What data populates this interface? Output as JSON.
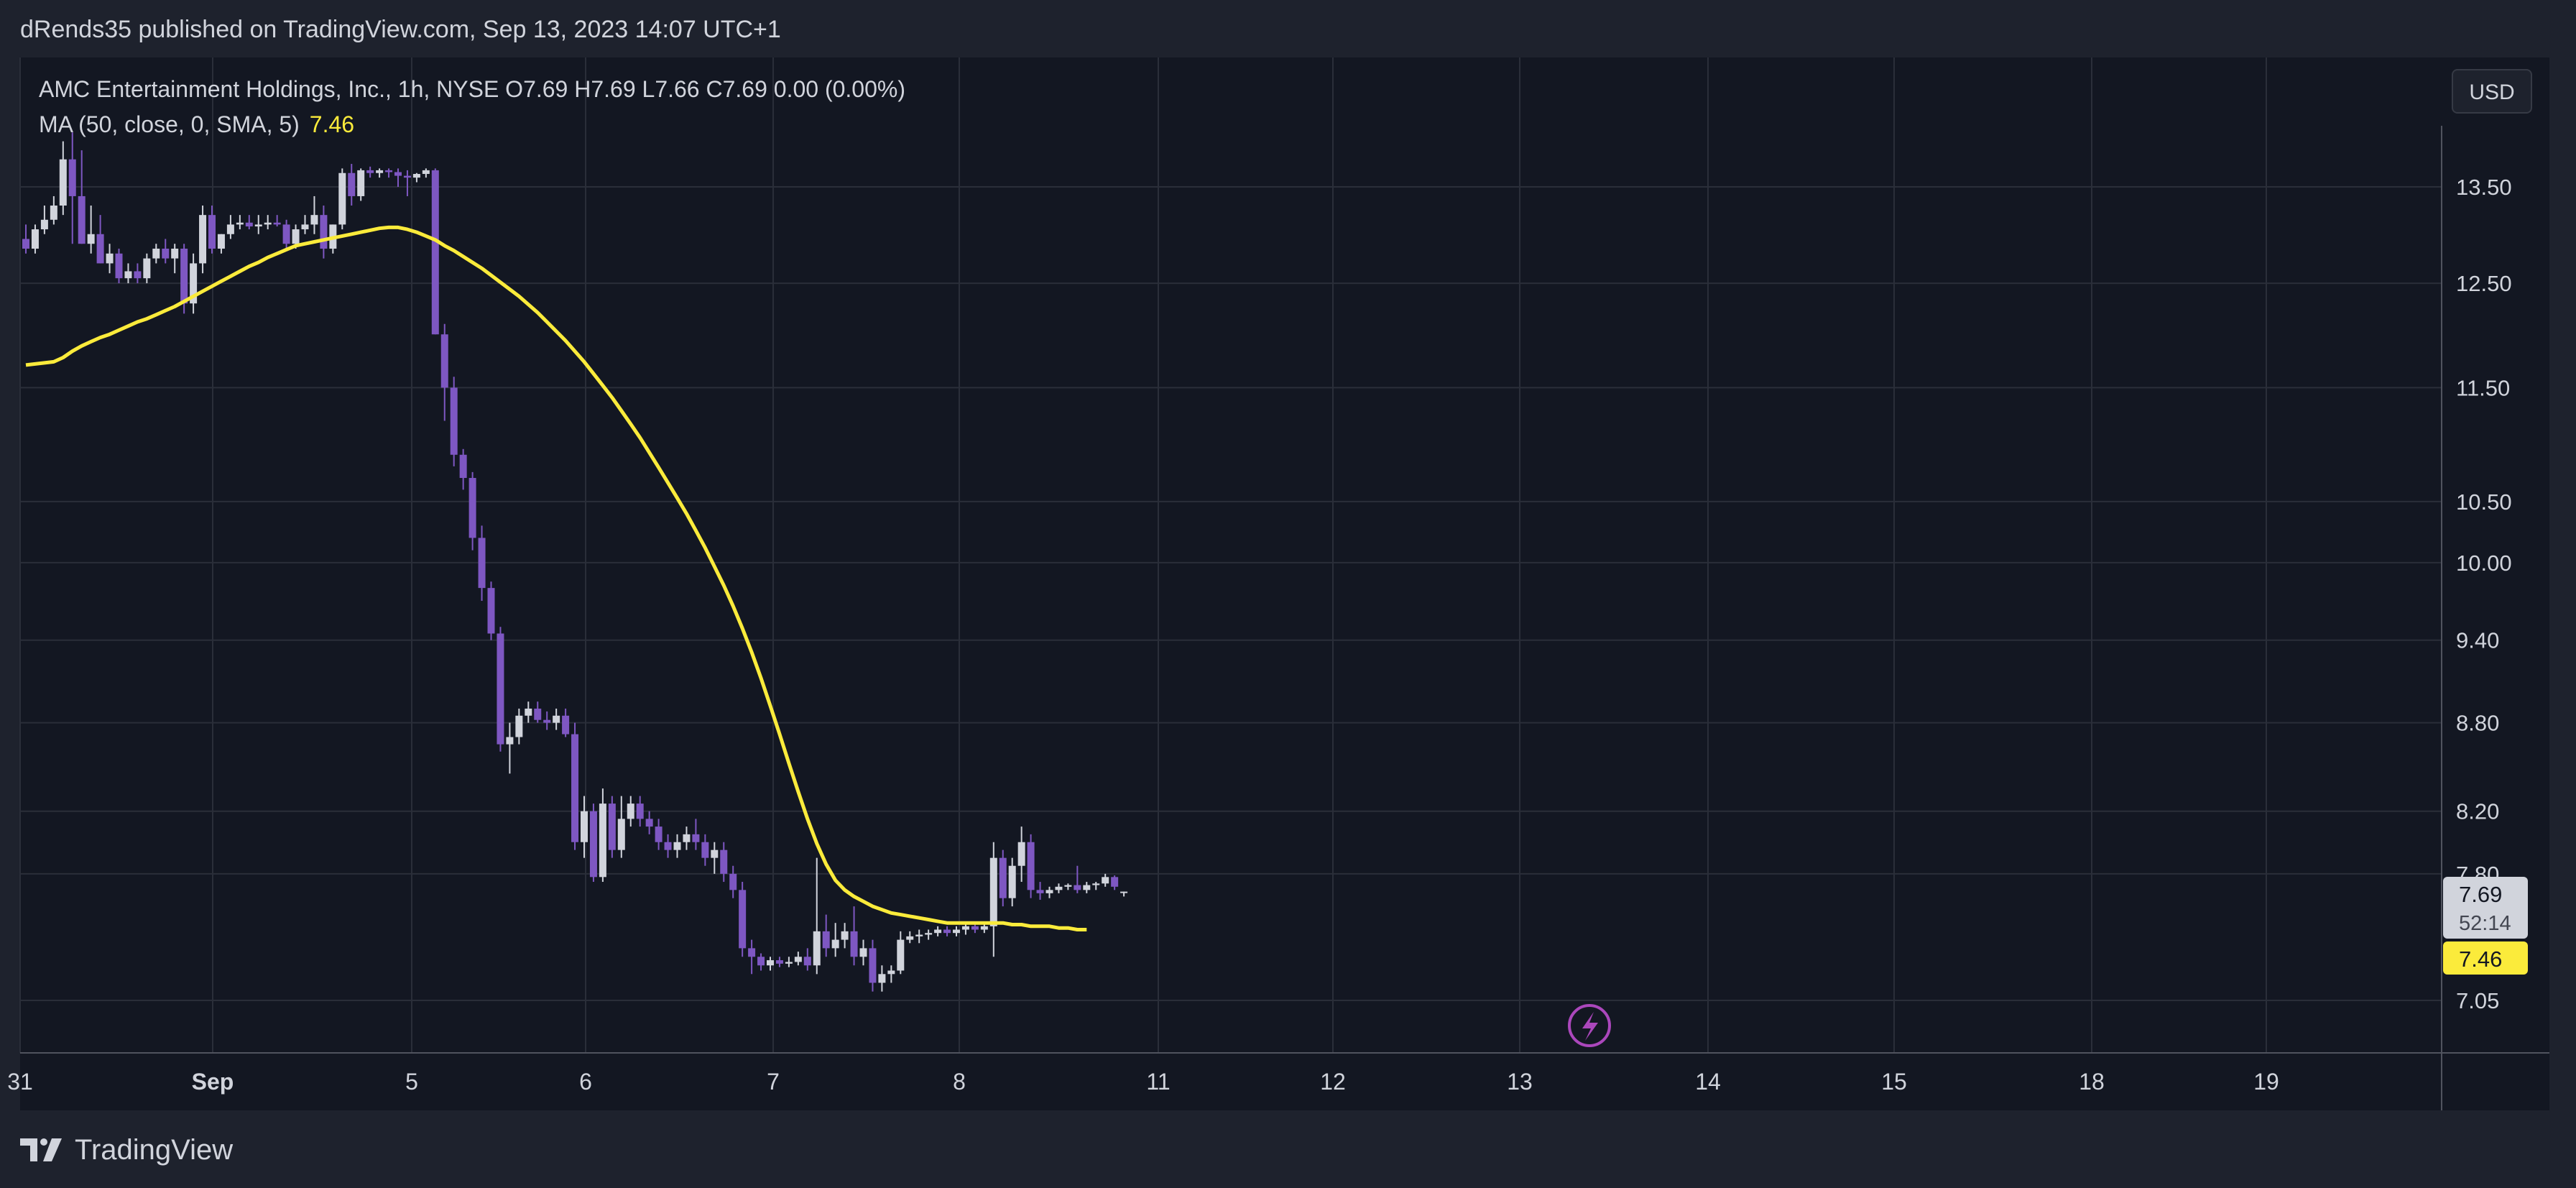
{
  "header": {
    "publish_line": "dRends35 published on TradingView.com, Sep 13, 2023 14:07 UTC+1"
  },
  "legend": {
    "symbol_line": "AMC Entertainment Holdings, Inc., 1h, NYSE  O7.69  H7.69  L7.66  C7.69  0.00 (0.00%)",
    "ma_label": "MA (50, close, 0, SMA, 5)",
    "ma_value": "7.46"
  },
  "toolbar": {
    "currency_label": "USD"
  },
  "footer": {
    "brand": "TradingView"
  },
  "colors": {
    "background": "#131722",
    "grid": "#2a2e39",
    "up_candle": "#d1d4dc",
    "down_candle": "#7e57c2",
    "ma_line": "#fbeb3b",
    "text": "#d1d4dc"
  },
  "chart_data": {
    "type": "candlestick",
    "title": "AMC Entertainment Holdings, Inc., 1h, NYSE",
    "y_scale": "log",
    "y_ticks": [
      "13.50",
      "12.50",
      "11.50",
      "10.50",
      "10.00",
      "9.40",
      "8.80",
      "8.20",
      "7.80",
      "7.05"
    ],
    "x_ticks": [
      "31",
      "Sep",
      "5",
      "6",
      "7",
      "8",
      "11",
      "12",
      "13",
      "14",
      "15",
      "18",
      "19"
    ],
    "last_price": "7.69",
    "countdown": "52:14",
    "ma_last": "7.46",
    "series": [
      {
        "name": "AMC Entertainment Holdings, Inc.",
        "ohlc": [
          [
            12.95,
            13.1,
            12.8,
            12.85
          ],
          [
            12.85,
            13.1,
            12.8,
            13.05
          ],
          [
            13.05,
            13.3,
            13.0,
            13.15
          ],
          [
            13.15,
            13.4,
            13.1,
            13.3
          ],
          [
            13.3,
            14.0,
            13.2,
            13.8
          ],
          [
            13.8,
            14.1,
            12.9,
            13.4
          ],
          [
            13.4,
            13.9,
            12.9,
            12.9
          ],
          [
            12.9,
            13.3,
            12.8,
            13.0
          ],
          [
            13.0,
            13.2,
            12.7,
            12.7
          ],
          [
            12.7,
            12.9,
            12.6,
            12.8
          ],
          [
            12.8,
            12.85,
            12.5,
            12.55
          ],
          [
            12.55,
            12.7,
            12.5,
            12.62
          ],
          [
            12.62,
            12.7,
            12.5,
            12.55
          ],
          [
            12.55,
            12.8,
            12.5,
            12.75
          ],
          [
            12.75,
            12.9,
            12.7,
            12.85
          ],
          [
            12.85,
            12.95,
            12.7,
            12.75
          ],
          [
            12.75,
            12.9,
            12.6,
            12.85
          ],
          [
            12.85,
            12.9,
            12.2,
            12.3
          ],
          [
            12.3,
            12.8,
            12.2,
            12.7
          ],
          [
            12.7,
            13.3,
            12.6,
            13.2
          ],
          [
            13.2,
            13.3,
            12.8,
            12.85
          ],
          [
            12.85,
            13.0,
            12.8,
            13.0
          ],
          [
            13.0,
            13.2,
            12.95,
            13.1
          ],
          [
            13.1,
            13.2,
            13.05,
            13.12
          ],
          [
            13.12,
            13.2,
            13.05,
            13.08
          ],
          [
            13.08,
            13.2,
            13.0,
            13.1
          ],
          [
            13.1,
            13.2,
            13.05,
            13.12
          ],
          [
            13.12,
            13.2,
            13.08,
            13.1
          ],
          [
            13.1,
            13.15,
            12.85,
            12.9
          ],
          [
            12.9,
            13.1,
            12.85,
            13.05
          ],
          [
            13.05,
            13.2,
            13.0,
            13.1
          ],
          [
            13.1,
            13.4,
            13.0,
            13.2
          ],
          [
            13.2,
            13.3,
            12.75,
            12.85
          ],
          [
            12.85,
            13.1,
            12.8,
            13.1
          ],
          [
            13.1,
            13.7,
            13.05,
            13.65
          ],
          [
            13.65,
            13.75,
            13.3,
            13.4
          ],
          [
            13.4,
            13.7,
            13.35,
            13.68
          ],
          [
            13.68,
            13.72,
            13.6,
            13.65
          ],
          [
            13.65,
            13.7,
            13.6,
            13.68
          ],
          [
            13.68,
            13.7,
            13.6,
            13.66
          ],
          [
            13.66,
            13.7,
            13.5,
            13.62
          ],
          [
            13.62,
            13.68,
            13.4,
            13.6
          ],
          [
            13.6,
            13.65,
            13.55,
            13.64
          ],
          [
            13.64,
            13.7,
            13.6,
            13.68
          ],
          [
            13.68,
            13.7,
            12.0,
            12.0
          ],
          [
            12.0,
            12.1,
            11.2,
            11.5
          ],
          [
            11.5,
            11.6,
            10.8,
            10.9
          ],
          [
            10.9,
            10.95,
            10.6,
            10.7
          ],
          [
            10.7,
            10.75,
            10.1,
            10.2
          ],
          [
            10.2,
            10.3,
            9.7,
            9.8
          ],
          [
            9.8,
            9.85,
            9.4,
            9.45
          ],
          [
            9.45,
            9.5,
            8.6,
            8.65
          ],
          [
            8.65,
            8.8,
            8.45,
            8.7
          ],
          [
            8.7,
            8.9,
            8.65,
            8.85
          ],
          [
            8.85,
            8.95,
            8.8,
            8.9
          ],
          [
            8.9,
            8.95,
            8.8,
            8.82
          ],
          [
            8.82,
            8.88,
            8.75,
            8.8
          ],
          [
            8.8,
            8.9,
            8.75,
            8.85
          ],
          [
            8.85,
            8.9,
            8.7,
            8.72
          ],
          [
            8.72,
            8.8,
            7.95,
            8.0
          ],
          [
            8.0,
            8.3,
            7.9,
            8.2
          ],
          [
            8.2,
            8.25,
            7.75,
            7.78
          ],
          [
            7.78,
            8.35,
            7.75,
            8.25
          ],
          [
            8.25,
            8.3,
            7.9,
            7.95
          ],
          [
            7.95,
            8.3,
            7.9,
            8.15
          ],
          [
            8.15,
            8.3,
            8.1,
            8.25
          ],
          [
            8.25,
            8.3,
            8.1,
            8.15
          ],
          [
            8.15,
            8.2,
            8.05,
            8.1
          ],
          [
            8.1,
            8.15,
            7.95,
            8.0
          ],
          [
            8.0,
            8.05,
            7.9,
            7.95
          ],
          [
            7.95,
            8.05,
            7.9,
            8.0
          ],
          [
            8.0,
            8.1,
            7.95,
            8.05
          ],
          [
            8.05,
            8.15,
            7.95,
            8.0
          ],
          [
            8.0,
            8.05,
            7.85,
            7.9
          ],
          [
            7.9,
            8.0,
            7.8,
            7.95
          ],
          [
            7.95,
            8.0,
            7.75,
            7.8
          ],
          [
            7.8,
            7.85,
            7.65,
            7.7
          ],
          [
            7.7,
            7.75,
            7.3,
            7.35
          ],
          [
            7.35,
            7.4,
            7.2,
            7.3
          ],
          [
            7.3,
            7.32,
            7.22,
            7.25
          ],
          [
            7.25,
            7.3,
            7.22,
            7.28
          ],
          [
            7.28,
            7.3,
            7.24,
            7.26
          ],
          [
            7.26,
            7.3,
            7.24,
            7.27
          ],
          [
            7.27,
            7.33,
            7.25,
            7.3
          ],
          [
            7.3,
            7.35,
            7.22,
            7.25
          ],
          [
            7.25,
            7.9,
            7.2,
            7.45
          ],
          [
            7.45,
            7.55,
            7.3,
            7.35
          ],
          [
            7.35,
            7.5,
            7.3,
            7.4
          ],
          [
            7.4,
            7.5,
            7.35,
            7.45
          ],
          [
            7.45,
            7.6,
            7.25,
            7.3
          ],
          [
            7.3,
            7.4,
            7.25,
            7.35
          ],
          [
            7.35,
            7.4,
            7.1,
            7.15
          ],
          [
            7.15,
            7.25,
            7.1,
            7.2
          ],
          [
            7.2,
            7.25,
            7.15,
            7.22
          ],
          [
            7.22,
            7.45,
            7.2,
            7.4
          ],
          [
            7.4,
            7.45,
            7.38,
            7.42
          ],
          [
            7.42,
            7.46,
            7.38,
            7.43
          ],
          [
            7.43,
            7.46,
            7.4,
            7.44
          ],
          [
            7.44,
            7.48,
            7.42,
            7.46
          ],
          [
            7.46,
            7.48,
            7.42,
            7.44
          ],
          [
            7.44,
            7.48,
            7.42,
            7.46
          ],
          [
            7.46,
            7.5,
            7.43,
            7.48
          ],
          [
            7.48,
            7.5,
            7.44,
            7.46
          ],
          [
            7.46,
            7.5,
            7.44,
            7.48
          ],
          [
            7.48,
            8.0,
            7.3,
            7.9
          ],
          [
            7.9,
            7.95,
            7.6,
            7.65
          ],
          [
            7.65,
            7.9,
            7.6,
            7.85
          ],
          [
            7.85,
            8.1,
            7.75,
            8.0
          ],
          [
            8.0,
            8.05,
            7.65,
            7.7
          ],
          [
            7.7,
            7.75,
            7.64,
            7.68
          ],
          [
            7.68,
            7.72,
            7.65,
            7.7
          ],
          [
            7.7,
            7.74,
            7.68,
            7.72
          ],
          [
            7.72,
            7.74,
            7.7,
            7.73
          ],
          [
            7.73,
            7.85,
            7.68,
            7.7
          ],
          [
            7.7,
            7.75,
            7.68,
            7.73
          ],
          [
            7.73,
            7.75,
            7.7,
            7.74
          ],
          [
            7.74,
            7.8,
            7.72,
            7.78
          ],
          [
            7.78,
            7.79,
            7.7,
            7.72
          ],
          [
            7.69,
            7.69,
            7.66,
            7.69
          ]
        ]
      },
      {
        "name": "MA (50, close, 0, SMA, 5)",
        "values": [
          11.71,
          11.72,
          11.73,
          11.74,
          11.78,
          11.84,
          11.89,
          11.93,
          11.97,
          12.0,
          12.04,
          12.08,
          12.12,
          12.15,
          12.19,
          12.23,
          12.27,
          12.32,
          12.37,
          12.42,
          12.47,
          12.52,
          12.57,
          12.62,
          12.67,
          12.71,
          12.76,
          12.8,
          12.84,
          12.88,
          12.9,
          12.92,
          12.94,
          12.96,
          12.98,
          13.0,
          13.02,
          13.04,
          13.06,
          13.07,
          13.07,
          13.05,
          13.02,
          12.98,
          12.94,
          12.88,
          12.83,
          12.77,
          12.71,
          12.65,
          12.58,
          12.51,
          12.44,
          12.37,
          12.29,
          12.21,
          12.12,
          12.03,
          11.94,
          11.84,
          11.74,
          11.63,
          11.52,
          11.41,
          11.29,
          11.17,
          11.05,
          10.92,
          10.79,
          10.66,
          10.53,
          10.4,
          10.26,
          10.12,
          9.97,
          9.82,
          9.66,
          9.49,
          9.31,
          9.12,
          8.92,
          8.72,
          8.52,
          8.33,
          8.15,
          7.99,
          7.86,
          7.76,
          7.7,
          7.66,
          7.63,
          7.6,
          7.58,
          7.56,
          7.55,
          7.54,
          7.53,
          7.52,
          7.51,
          7.5,
          7.5,
          7.5,
          7.5,
          7.5,
          7.5,
          7.5,
          7.49,
          7.49,
          7.48,
          7.48,
          7.48,
          7.47,
          7.47,
          7.46,
          7.46
        ]
      }
    ]
  }
}
